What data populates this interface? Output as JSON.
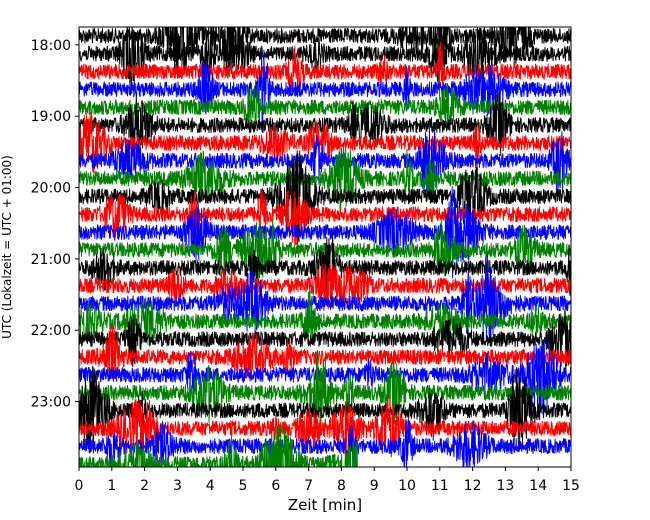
{
  "chart_data": {
    "type": "line",
    "subtype": "helicorder",
    "title": "",
    "xlabel": "Zeit  [min]",
    "ylabel": "UTC (Lokalzeit = UTC + 01:00)",
    "xlim": [
      0,
      15
    ],
    "x_ticks": [
      0,
      1,
      2,
      3,
      4,
      5,
      6,
      7,
      8,
      9,
      10,
      11,
      12,
      13,
      14,
      15
    ],
    "y_ticks": [
      "18:00",
      "19:00",
      "20:00",
      "21:00",
      "22:00",
      "23:00"
    ],
    "ylim_hours": [
      "17:45",
      "23:55"
    ],
    "trace_interval_minutes": 15,
    "trace_colors": [
      "#000000",
      "#ff0000",
      "#0000ff",
      "#008000"
    ],
    "series": [
      {
        "start": "17:45",
        "color": "#000000"
      },
      {
        "start": "18:00",
        "color": "#000000"
      },
      {
        "start": "18:15",
        "color": "#ff0000"
      },
      {
        "start": "18:30",
        "color": "#0000ff"
      },
      {
        "start": "18:45",
        "color": "#008000"
      },
      {
        "start": "19:00",
        "color": "#000000"
      },
      {
        "start": "19:15",
        "color": "#ff0000"
      },
      {
        "start": "19:30",
        "color": "#0000ff"
      },
      {
        "start": "19:45",
        "color": "#008000"
      },
      {
        "start": "20:00",
        "color": "#000000"
      },
      {
        "start": "20:15",
        "color": "#ff0000"
      },
      {
        "start": "20:30",
        "color": "#0000ff"
      },
      {
        "start": "20:45",
        "color": "#008000"
      },
      {
        "start": "21:00",
        "color": "#000000"
      },
      {
        "start": "21:15",
        "color": "#ff0000"
      },
      {
        "start": "21:30",
        "color": "#0000ff"
      },
      {
        "start": "21:45",
        "color": "#008000"
      },
      {
        "start": "22:00",
        "color": "#000000"
      },
      {
        "start": "22:15",
        "color": "#ff0000"
      },
      {
        "start": "22:30",
        "color": "#0000ff"
      },
      {
        "start": "22:45",
        "color": "#008000"
      },
      {
        "start": "23:00",
        "color": "#000000"
      },
      {
        "start": "23:15",
        "color": "#ff0000"
      },
      {
        "start": "23:30",
        "color": "#0000ff"
      },
      {
        "start": "23:45",
        "color": "#008000",
        "end_minute": 8.5
      }
    ],
    "grid": false,
    "legend": "none"
  }
}
